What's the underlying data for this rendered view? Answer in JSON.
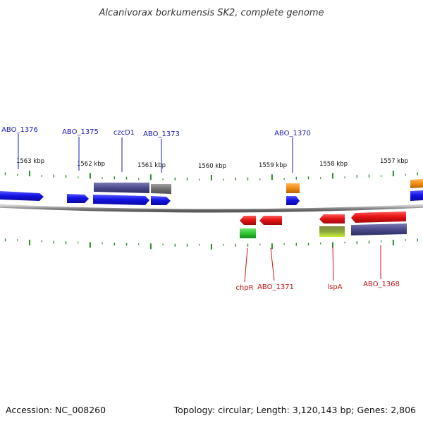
{
  "title": "Alcanivorax borkumensis SK2, complete genome",
  "accession": "Accession: NC_008260",
  "summary": "Topology: circular; Length: 3,120,143 bp; Genes: 2,806",
  "kbp_labels": [
    "1563 kbp",
    "1562 kbp",
    "1561 kbp",
    "1560 kbp",
    "1559 kbp",
    "1558 kbp",
    "1557 kbp"
  ],
  "colors": {
    "forward_gene": "#1414e6",
    "reverse_gene": "#e61414",
    "forward_label": "#1a1ab4",
    "reverse_label": "#c81414",
    "tick": "#2a8a2a",
    "backbone": "#888888",
    "cog_purple": "#4a4a8c",
    "cog_gray": "#707070",
    "cog_orange": "#f08c14",
    "cog_green": "#2ec82e",
    "cog_olive": "#8ca83c"
  },
  "forward_labels": [
    {
      "id": "abo1376",
      "text": "ABO_1376"
    },
    {
      "id": "abo1375",
      "text": "ABO_1375"
    },
    {
      "id": "czcd1",
      "text": "czcD1"
    },
    {
      "id": "abo1373",
      "text": "ABO_1373"
    },
    {
      "id": "abo1370",
      "text": "ABO_1370"
    }
  ],
  "reverse_labels": [
    {
      "id": "chpr",
      "text": "chpR"
    },
    {
      "id": "abo1371",
      "text": "ABO_1371"
    },
    {
      "id": "lspa",
      "text": "lspA"
    },
    {
      "id": "abo1368",
      "text": "ABO_1368"
    }
  ]
}
